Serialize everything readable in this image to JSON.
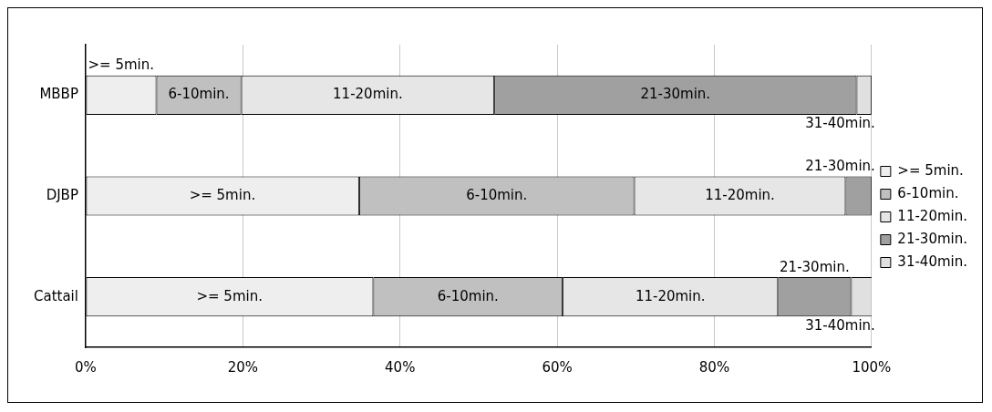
{
  "chart_data": {
    "type": "bar",
    "orientation": "horizontal",
    "stacked": true,
    "categories": [
      "MBBP",
      "DJBP",
      "Cattail"
    ],
    "series": [
      {
        "name": ">= 5min.",
        "color": "#eeeeee",
        "values": [
          9.0,
          34.8,
          36.6
        ]
      },
      {
        "name": "6-10min.",
        "color": "#c0c0c0",
        "values": [
          10.8,
          35.0,
          24.1
        ]
      },
      {
        "name": "11-20min.",
        "color": "#e6e6e6",
        "values": [
          32.2,
          26.9,
          27.4
        ]
      },
      {
        "name": "21-30min.",
        "color": "#a0a0a0",
        "values": [
          46.1,
          3.3,
          9.3
        ]
      },
      {
        "name": "31-40min.",
        "color": "#e0e0e0",
        "values": [
          1.9,
          null,
          2.7
        ]
      }
    ],
    "xlim": [
      0,
      100
    ],
    "xticks": [
      {
        "value": 0,
        "label": "0%"
      },
      {
        "value": 20,
        "label": "20%"
      },
      {
        "value": 40,
        "label": "40%"
      },
      {
        "value": 60,
        "label": "60%"
      },
      {
        "value": 80,
        "label": "80%"
      },
      {
        "value": 100,
        "label": "100%"
      }
    ],
    "grid": "x",
    "legend": "right",
    "annotations": [
      ">= 5min.",
      "6-10min.",
      "11-20min.",
      "21-30min.",
      "31-40min.",
      ">= 5min.",
      "6-10min.",
      "11-20min.",
      "21-30min.",
      ">= 5min.",
      "6-10min.",
      "11-20min.",
      "21-30min.",
      "31-40min."
    ]
  }
}
